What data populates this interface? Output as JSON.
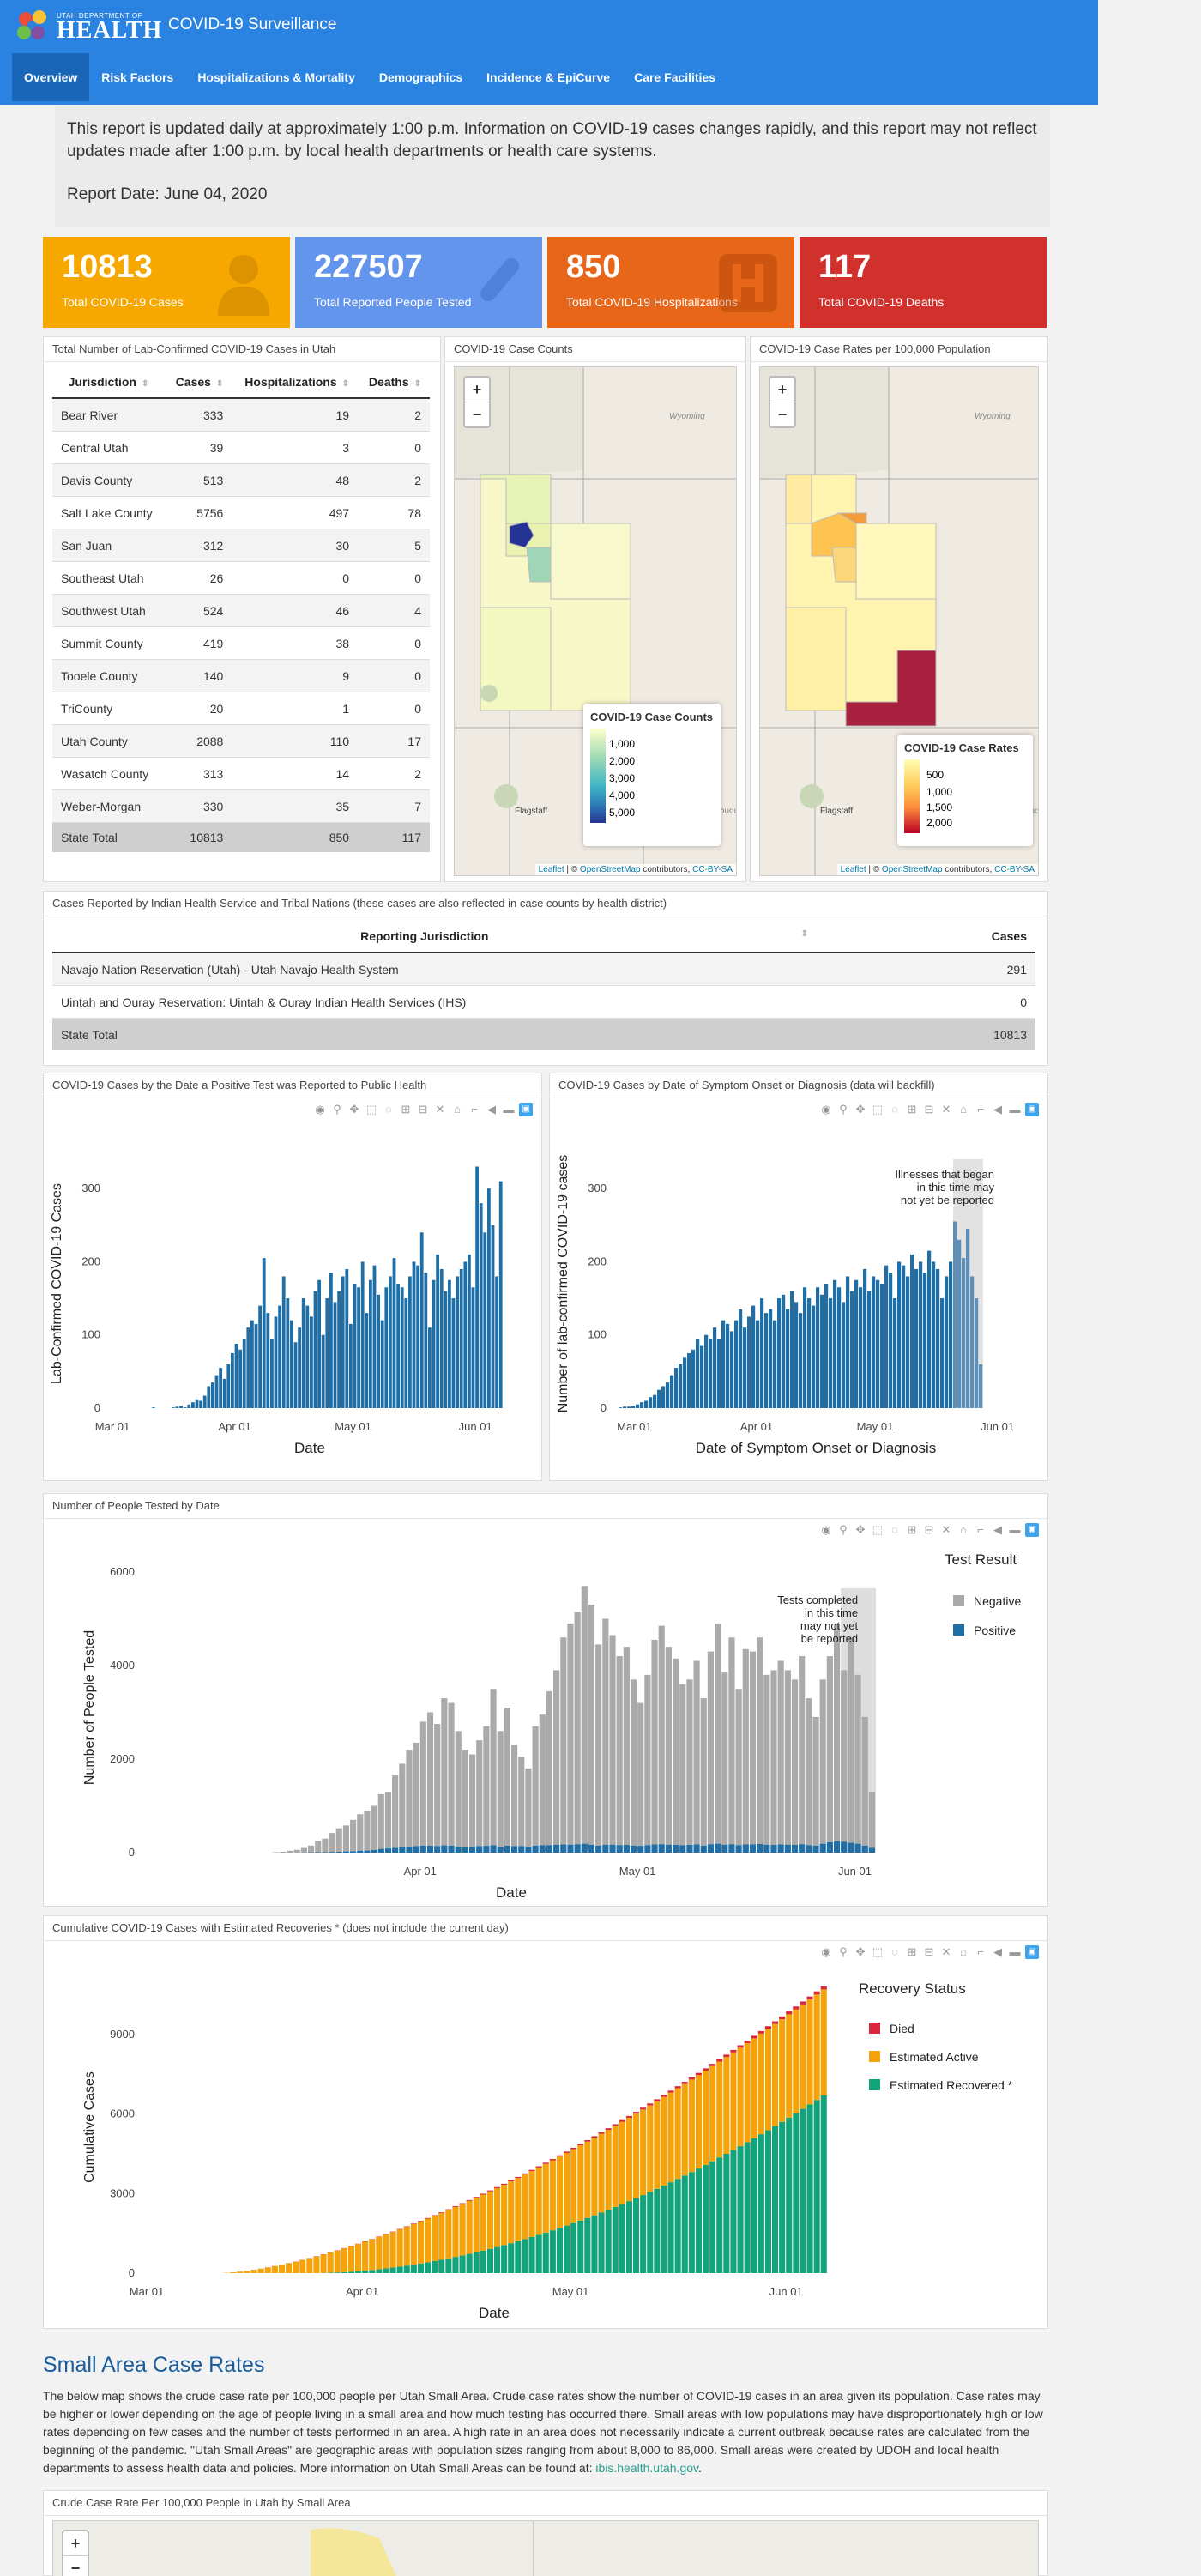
{
  "header": {
    "dept": "UTAH DEPARTMENT OF",
    "health": "HEALTH",
    "title": "COVID-19 Surveillance"
  },
  "nav": [
    "Overview",
    "Risk Factors",
    "Hospitalizations & Mortality",
    "Demographics",
    "Incidence & EpiCurve",
    "Care Facilities"
  ],
  "notice": {
    "text": "This report is updated daily at approximately 1:00 p.m. Information on COVID-19 cases changes rapidly, and this report may not reflect updates made after 1:00 p.m. by local health departments or health care systems.",
    "date": "Report Date: June 04, 2020"
  },
  "cards": [
    {
      "value": "10813",
      "label": "Total COVID-19 Cases",
      "color": "#f6a800"
    },
    {
      "value": "227507",
      "label": "Total Reported People Tested",
      "color": "#6495ed"
    },
    {
      "value": "850",
      "label": "Total COVID-19 Hospitalizations",
      "color": "#e8661a"
    },
    {
      "value": "117",
      "label": "Total COVID-19 Deaths",
      "color": "#d0312d"
    }
  ],
  "cases_table": {
    "title": "Total Number of Lab-Confirmed COVID-19 Cases in Utah",
    "headers": [
      "Jurisdiction",
      "Cases",
      "Hospitalizations",
      "Deaths"
    ],
    "rows": [
      [
        "Bear River",
        "333",
        "19",
        "2"
      ],
      [
        "Central Utah",
        "39",
        "3",
        "0"
      ],
      [
        "Davis County",
        "513",
        "48",
        "2"
      ],
      [
        "Salt Lake County",
        "5756",
        "497",
        "78"
      ],
      [
        "San Juan",
        "312",
        "30",
        "5"
      ],
      [
        "Southeast Utah",
        "26",
        "0",
        "0"
      ],
      [
        "Southwest Utah",
        "524",
        "46",
        "4"
      ],
      [
        "Summit County",
        "419",
        "38",
        "0"
      ],
      [
        "Tooele County",
        "140",
        "9",
        "0"
      ],
      [
        "TriCounty",
        "20",
        "1",
        "0"
      ],
      [
        "Utah County",
        "2088",
        "110",
        "17"
      ],
      [
        "Wasatch County",
        "313",
        "14",
        "2"
      ],
      [
        "Weber-Morgan",
        "330",
        "35",
        "7"
      ]
    ],
    "total": [
      "State Total",
      "10813",
      "850",
      "117"
    ]
  },
  "map_counts": {
    "title": "COVID-19 Case Counts",
    "legend_title": "COVID-19 Case Counts",
    "legend": [
      "1,000",
      "2,000",
      "3,000",
      "4,000",
      "5,000"
    ],
    "state_label": "Wyoming",
    "city1": "Flagstaff",
    "city2": "Albuquer",
    "attribution": {
      "leaflet": "Leaflet",
      "sep": "| ©",
      "osm": "OpenStreetMap",
      "contributors": "contributors,",
      "license": "CC-BY-SA"
    }
  },
  "map_rates": {
    "title": "COVID-19 Case Rates per 100,000 Population",
    "legend_title": "COVID-19 Case Rates",
    "legend": [
      "500",
      "1,000",
      "1,500",
      "2,000"
    ],
    "state_label": "Wyoming",
    "city1": "Flagstaff",
    "city2": "Albuquer"
  },
  "ihs": {
    "title": "Cases Reported by Indian Health Service and Tribal Nations (these cases are also reflected in case counts by health district)",
    "headers": [
      "Reporting Jurisdiction",
      "Cases"
    ],
    "rows": [
      [
        "Navajo Nation Reservation (Utah) - Utah Navajo Health System",
        "291"
      ],
      [
        "Uintah and Ouray Reservation: Uintah & Ouray Indian Health Services (IHS)",
        "0"
      ]
    ],
    "total": [
      "State Total",
      "10813"
    ]
  },
  "chart_titles": {
    "reported": "COVID-19 Cases by the Date a Positive Test was Reported to Public Health",
    "onset": "COVID-19 Cases by Date of Symptom Onset or Diagnosis (data will backfill)",
    "tested": "Number of People Tested by Date",
    "cumulative": "Cumulative COVID-19 Cases with Estimated Recoveries * (does not include the current day)"
  },
  "chart_data": [
    {
      "type": "bar",
      "xlabel": "Date",
      "ylabel": "Lab-Confirmed COVID-19 Cases",
      "ylim": [
        0,
        340
      ],
      "yticks": [
        0,
        100,
        200,
        300
      ],
      "xticks": [
        "Mar 01",
        "Apr 01",
        "May 01",
        "Jun 01"
      ],
      "start_offset": 10,
      "values": [
        1,
        0,
        0,
        0,
        0,
        1,
        2,
        3,
        1,
        5,
        8,
        12,
        10,
        17,
        30,
        35,
        45,
        55,
        40,
        60,
        75,
        88,
        80,
        95,
        110,
        120,
        115,
        140,
        205,
        130,
        95,
        125,
        140,
        180,
        150,
        120,
        90,
        110,
        150,
        140,
        125,
        160,
        175,
        100,
        150,
        185,
        145,
        160,
        180,
        190,
        115,
        170,
        165,
        200,
        130,
        175,
        195,
        155,
        120,
        165,
        180,
        205,
        170,
        165,
        150,
        180,
        200,
        195,
        240,
        185,
        110,
        175,
        210,
        190,
        160,
        175,
        150,
        180,
        190,
        200,
        210,
        165,
        330,
        280,
        240,
        300,
        250,
        180,
        310
      ],
      "color": "#1f6fa6"
    },
    {
      "type": "bar",
      "xlabel": "Date of Symptom Onset or Diagnosis",
      "ylabel": "Number of lab-confirmed COVID-19 cases",
      "ylim": [
        0,
        340
      ],
      "yticks": [
        0,
        100,
        200,
        300
      ],
      "xticks": [
        "Mar 01",
        "Apr 01",
        "May 01",
        "Jun 01"
      ],
      "start_offset": 0,
      "values": [
        1,
        2,
        2,
        3,
        5,
        8,
        10,
        15,
        18,
        25,
        30,
        35,
        45,
        55,
        60,
        70,
        75,
        80,
        95,
        85,
        100,
        95,
        110,
        95,
        120,
        115,
        105,
        120,
        135,
        110,
        125,
        140,
        120,
        150,
        130,
        135,
        120,
        150,
        155,
        135,
        160,
        145,
        130,
        165,
        150,
        140,
        165,
        155,
        170,
        150,
        175,
        165,
        145,
        180,
        160,
        175,
        165,
        190,
        160,
        180,
        175,
        170,
        195,
        185,
        150,
        200,
        195,
        180,
        210,
        190,
        200,
        185,
        215,
        200,
        190,
        150,
        180,
        200,
        255,
        230,
        205,
        245,
        180,
        150,
        60
      ],
      "shade_from": 78,
      "shade_label": [
        "Illnesses that began",
        "in this time may",
        "not yet be reported"
      ],
      "color": "#1f6fa6"
    },
    {
      "type": "bar",
      "stacked": true,
      "xlabel": "Date",
      "ylabel": "Number of People Tested",
      "ylim": [
        0,
        6200
      ],
      "yticks": [
        0,
        2000,
        4000,
        6000
      ],
      "xticks": [
        "Apr 01",
        "May 01",
        "Jun 01"
      ],
      "legend_title": "Test Result",
      "series": [
        {
          "name": "Negative",
          "color": "#aaaaaa"
        },
        {
          "name": "Positive",
          "color": "#1f6fa6"
        }
      ],
      "start_offset": 18,
      "totals": [
        10,
        20,
        40,
        60,
        100,
        150,
        250,
        300,
        420,
        520,
        580,
        700,
        820,
        900,
        1000,
        1250,
        1300,
        1650,
        1900,
        2200,
        2350,
        2800,
        3000,
        2750,
        3300,
        3200,
        2600,
        2200,
        2100,
        2400,
        2700,
        3500,
        2600,
        3100,
        2300,
        2050,
        1800,
        2700,
        2950,
        3450,
        3900,
        4600,
        4900,
        5150,
        5700,
        5300,
        4450,
        5000,
        4650,
        4200,
        4400,
        3700,
        3200,
        3800,
        4550,
        4850,
        4400,
        4150,
        3600,
        3700,
        4100,
        3300,
        4300,
        4900,
        3850,
        4600,
        3500,
        4350,
        4300,
        4600,
        3800,
        3900,
        4100,
        3900,
        3700,
        4200,
        3300,
        2900,
        3700,
        4200,
        4900,
        3900,
        4600,
        3800,
        2900,
        1300
      ],
      "positives": [
        1,
        1,
        2,
        3,
        5,
        8,
        10,
        12,
        15,
        20,
        25,
        30,
        40,
        45,
        55,
        80,
        90,
        100,
        110,
        130,
        140,
        150,
        150,
        140,
        155,
        150,
        130,
        120,
        120,
        140,
        145,
        160,
        130,
        150,
        140,
        140,
        120,
        150,
        160,
        160,
        170,
        175,
        170,
        180,
        190,
        170,
        150,
        170,
        170,
        160,
        165,
        150,
        145,
        160,
        175,
        180,
        170,
        165,
        160,
        165,
        175,
        150,
        180,
        190,
        170,
        180,
        160,
        175,
        175,
        185,
        170,
        165,
        175,
        170,
        165,
        180,
        160,
        150,
        190,
        220,
        240,
        230,
        210,
        190,
        150,
        100
      ],
      "shade_from": 81,
      "shade_label": [
        "Tests completed",
        "in this time",
        "may not yet",
        "be reported"
      ]
    },
    {
      "type": "bar",
      "stacked": true,
      "xlabel": "Date",
      "ylabel": "Cumulative Cases",
      "ylim": [
        0,
        11000
      ],
      "yticks": [
        0,
        3000,
        6000,
        9000
      ],
      "xticks": [
        "Mar 01",
        "Apr 01",
        "May 01",
        "Jun 01"
      ],
      "legend_title": "Recovery Status",
      "series": [
        {
          "name": "Died",
          "color": "#d7263d"
        },
        {
          "name": "Estimated Active",
          "color": "#f5a30a"
        },
        {
          "name": "Estimated Recovered *",
          "color": "#12a37a"
        }
      ],
      "start_offset": 10,
      "days": 88,
      "final_total": 10813,
      "final_recovered": 6700,
      "final_died": 117
    }
  ],
  "small_area": {
    "title": "Small Area Case Rates",
    "text": "The below map shows the crude case rate per 100,000 people per Utah Small Area. Crude case rates show the number of COVID-19 cases in an area given its population. Case rates may be higher or lower depending on the age of people living in a small area and how much testing has occurred there. Small areas with low populations may have disproportionately high or low rates depending on few cases and the number of tests performed in an area. A high rate in an area does not necessarily indicate a current outbreak because rates are calculated from the beginning of the pandemic. \"Utah Small Areas\" are geographic areas with population sizes ranging from about 8,000 to 86,000. Small areas were created by UDOH and local health departments to assess health data and policies. More information on Utah Small Areas can be found at: ",
    "link": "ibis.health.utah.gov",
    "period": ".",
    "map_title": "Crude Case Rate Per 100,000 People in Utah by Small Area"
  }
}
